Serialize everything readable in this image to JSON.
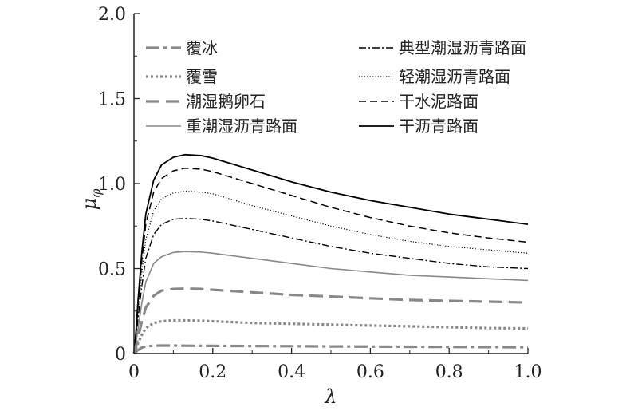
{
  "chart_data": {
    "type": "line",
    "title": "",
    "xlabel": "λ",
    "ylabel_main": "μ",
    "ylabel_sub": "φ",
    "xlim": [
      0,
      1.0
    ],
    "ylim": [
      0,
      2.0
    ],
    "x_ticks": [
      "0",
      "0.2",
      "0.4",
      "0.6",
      "0.8",
      "1.0"
    ],
    "y_ticks": [
      "0",
      "0.5",
      "1.0",
      "1.5",
      "2.0"
    ],
    "grid": false,
    "legend_position": "top",
    "x": [
      0,
      0.005,
      0.01,
      0.02,
      0.03,
      0.05,
      0.07,
      0.1,
      0.13,
      0.17,
      0.2,
      0.3,
      0.4,
      0.5,
      0.6,
      0.7,
      0.8,
      0.9,
      1.0
    ],
    "series": [
      {
        "name": "干沥青路面",
        "style": "solid",
        "color": "#000000",
        "width": 1.8,
        "values": [
          0,
          0.13,
          0.3,
          0.6,
          0.82,
          1.02,
          1.11,
          1.155,
          1.17,
          1.165,
          1.15,
          1.08,
          1.01,
          0.95,
          0.9,
          0.86,
          0.82,
          0.79,
          0.76
        ]
      },
      {
        "name": "干水泥路面",
        "style": "dashed",
        "color": "#000000",
        "width": 1.5,
        "values": [
          0,
          0.12,
          0.27,
          0.55,
          0.76,
          0.95,
          1.03,
          1.075,
          1.09,
          1.085,
          1.07,
          1.0,
          0.93,
          0.86,
          0.8,
          0.75,
          0.71,
          0.68,
          0.655
        ]
      },
      {
        "name": "轻潮湿沥青路面",
        "style": "dotted-fine",
        "color": "#000000",
        "width": 1.2,
        "values": [
          0,
          0.1,
          0.24,
          0.48,
          0.67,
          0.84,
          0.91,
          0.945,
          0.955,
          0.95,
          0.94,
          0.87,
          0.81,
          0.75,
          0.7,
          0.66,
          0.63,
          0.61,
          0.59
        ]
      },
      {
        "name": "典型潮湿沥青路面",
        "style": "dashdot",
        "color": "#000000",
        "width": 1.4,
        "values": [
          0,
          0.08,
          0.2,
          0.4,
          0.56,
          0.7,
          0.76,
          0.79,
          0.795,
          0.79,
          0.78,
          0.73,
          0.68,
          0.63,
          0.59,
          0.56,
          0.53,
          0.51,
          0.5
        ]
      },
      {
        "name": "重潮湿沥青路面",
        "style": "solid",
        "color": "#888888",
        "width": 1.6,
        "values": [
          0,
          0.06,
          0.14,
          0.3,
          0.42,
          0.53,
          0.57,
          0.595,
          0.6,
          0.597,
          0.59,
          0.56,
          0.53,
          0.5,
          0.48,
          0.46,
          0.45,
          0.44,
          0.43
        ]
      },
      {
        "name": "潮湿鹅卵石",
        "style": "dashed-bold",
        "color": "#888888",
        "width": 3.2,
        "values": [
          0,
          0.04,
          0.09,
          0.19,
          0.27,
          0.34,
          0.37,
          0.38,
          0.382,
          0.38,
          0.375,
          0.36,
          0.345,
          0.335,
          0.325,
          0.315,
          0.31,
          0.305,
          0.3
        ]
      },
      {
        "name": "覆雪",
        "style": "dotted-bold",
        "color": "#888888",
        "width": 3.2,
        "values": [
          0,
          0.03,
          0.06,
          0.11,
          0.15,
          0.18,
          0.19,
          0.195,
          0.195,
          0.193,
          0.19,
          0.18,
          0.175,
          0.17,
          0.165,
          0.16,
          0.155,
          0.15,
          0.148
        ]
      },
      {
        "name": "覆冰",
        "style": "dashdot-bold",
        "color": "#888888",
        "width": 3.2,
        "values": [
          0,
          0.01,
          0.02,
          0.035,
          0.042,
          0.046,
          0.047,
          0.047,
          0.046,
          0.045,
          0.045,
          0.044,
          0.043,
          0.042,
          0.041,
          0.04,
          0.039,
          0.038,
          0.037
        ]
      }
    ],
    "legend_left": [
      "覆冰",
      "覆雪",
      "潮湿鹅卵石",
      "重潮湿沥青路面"
    ],
    "legend_right": [
      "典型潮湿沥青路面",
      "轻潮湿沥青路面",
      "干水泥路面",
      "干沥青路面"
    ]
  }
}
